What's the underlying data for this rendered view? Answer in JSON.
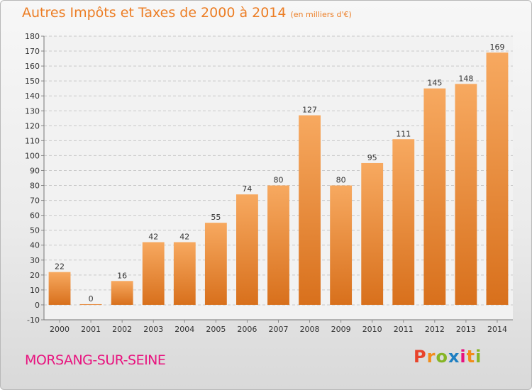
{
  "title": "Autres Impôts et Taxes de 2000 à 2014",
  "subtitle": "(en milliers d'€)",
  "location": "MORSANG-SUR-SEINE",
  "logo": {
    "letters": [
      "P",
      "r",
      "o",
      "x",
      "i",
      "t",
      "i"
    ],
    "colors": [
      "#e8432b",
      "#f28c1a",
      "#86b525",
      "#1e7fc2",
      "#e8127e",
      "#f28c1a",
      "#86b525"
    ]
  },
  "colors": {
    "accent": "#ec7d24",
    "bar_light": "#f7a960",
    "bar_dark": "#d8701c",
    "city": "#e8127e"
  },
  "chart_data": {
    "type": "bar",
    "title": "Autres Impôts et Taxes de 2000 à 2014",
    "subtitle": "(en milliers d'€)",
    "categories": [
      "2000",
      "2001",
      "2002",
      "2003",
      "2004",
      "2005",
      "2006",
      "2007",
      "2008",
      "2009",
      "2010",
      "2011",
      "2012",
      "2013",
      "2014"
    ],
    "values": [
      22,
      0,
      16,
      42,
      42,
      55,
      74,
      80,
      127,
      80,
      95,
      111,
      145,
      148,
      169
    ],
    "ylim": [
      -10,
      180
    ],
    "yticks": [
      -10,
      0,
      10,
      20,
      30,
      40,
      50,
      60,
      70,
      80,
      90,
      100,
      110,
      120,
      130,
      140,
      150,
      160,
      170,
      180
    ],
    "grid": true
  }
}
